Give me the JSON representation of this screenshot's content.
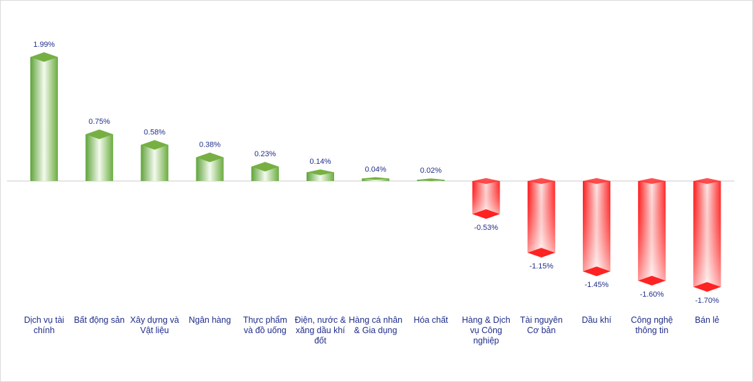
{
  "chart_data": {
    "type": "bar",
    "categories": [
      "Dịch vụ tài chính",
      "Bất động sản",
      "Xây dựng và Vật liệu",
      "Ngân hàng",
      "Thực phẩm và đồ uống",
      "Điện, nước & xăng dầu khí đốt",
      "Hàng cá nhân & Gia dụng",
      "Hóa chất",
      "Hàng & Dịch vụ Công nghiệp",
      "Tài nguyên Cơ bản",
      "Dầu khí",
      "Công nghệ thông tin",
      "Bán lẻ"
    ],
    "values": [
      1.99,
      0.75,
      0.58,
      0.38,
      0.23,
      0.14,
      0.04,
      0.02,
      -0.53,
      -1.15,
      -1.45,
      -1.6,
      -1.7
    ],
    "value_labels": [
      "1.99%",
      "0.75%",
      "0.58%",
      "0.38%",
      "0.23%",
      "0.14%",
      "0.04%",
      "0.02%",
      "-0.53%",
      "-1.15%",
      "-1.45%",
      "-1.60%",
      "-1.70%"
    ],
    "title": "",
    "xlabel": "",
    "ylabel": "",
    "ylim": [
      -2.0,
      2.1
    ],
    "grid": false,
    "legend": "none",
    "colors": {
      "positive_dark": "#5fa33a",
      "positive_light": "#ffffff",
      "positive_top": "#76b043",
      "negative_dark": "#ff1a1a",
      "negative_light": "#ffffff",
      "negative_bottom": "#ff2222",
      "label_text": "#1f2d8a",
      "axis_line": "#c8c8c8"
    }
  }
}
